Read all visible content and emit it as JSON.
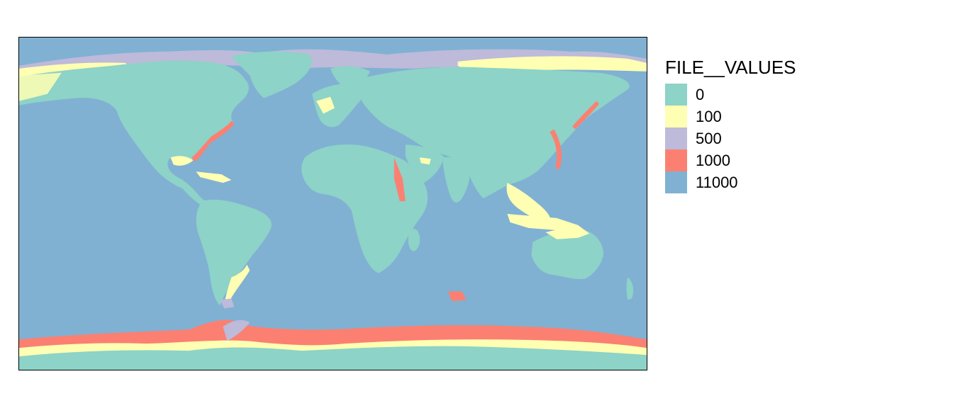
{
  "legend": {
    "title": "FILE__VALUES",
    "items": [
      {
        "label": "0",
        "color": "#8DD3C7"
      },
      {
        "label": "100",
        "color": "#FFFFB3"
      },
      {
        "label": "500",
        "color": "#BEBADA"
      },
      {
        "label": "1000",
        "color": "#FB8072"
      },
      {
        "label": "11000",
        "color": "#80B1D3"
      }
    ]
  },
  "map": {
    "projection": "equirectangular world",
    "ocean_color": "#80B1D3",
    "land_color": "#8DD3C7"
  }
}
